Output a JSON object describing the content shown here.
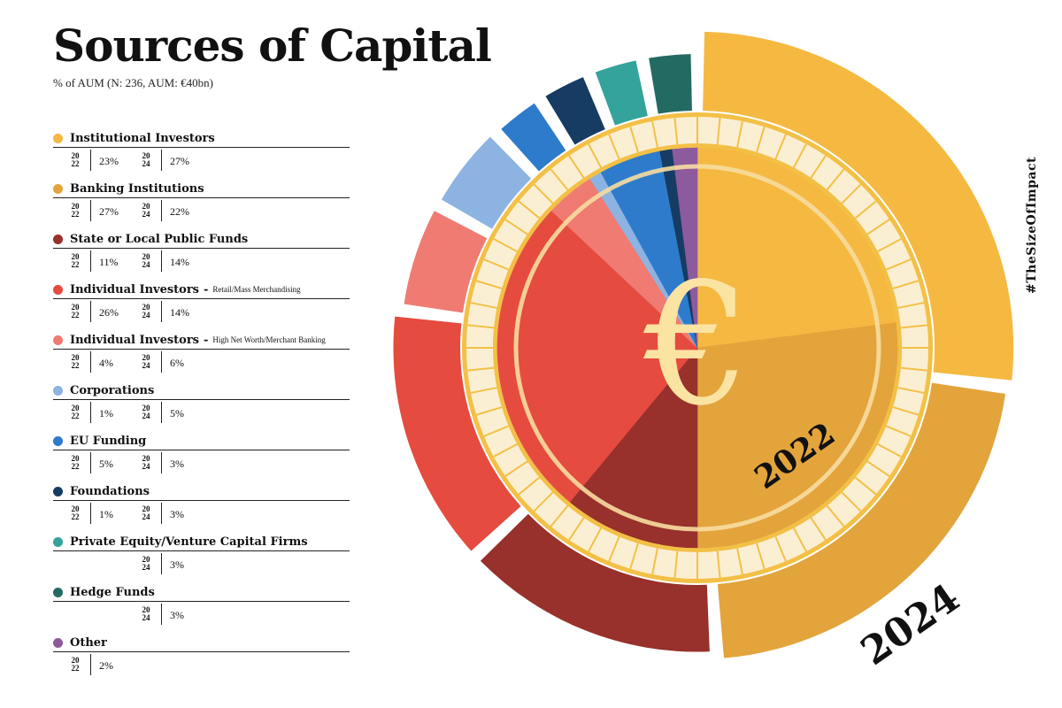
{
  "title": "Sources of Capital",
  "subtitle": "% of AUM (N: 236, AUM: €40bn)",
  "hashtag": "#TheSizeOfImpact",
  "year_labels": {
    "y2022": "2022",
    "y2024": "2024"
  },
  "currency_symbol": "€",
  "legend_year_2022": [
    "20",
    "22"
  ],
  "legend_year_2024": [
    "20",
    "24"
  ],
  "chart_data": {
    "type": "pie",
    "series": [
      {
        "name": "2022",
        "values": [
          23,
          27,
          11,
          26,
          4,
          1,
          5,
          1,
          null,
          null,
          2
        ]
      },
      {
        "name": "2024",
        "values": [
          27,
          22,
          14,
          14,
          6,
          5,
          3,
          3,
          3,
          3,
          null
        ]
      }
    ],
    "categories": [
      {
        "name": "Institutional Investors",
        "sub": "",
        "color": "#F5B942",
        "v2022": "23%",
        "v2024": "27%"
      },
      {
        "name": "Banking Institutions",
        "sub": "",
        "color": "#E3A43C",
        "v2022": "27%",
        "v2024": "22%"
      },
      {
        "name": "State or Local Public Funds",
        "sub": "",
        "color": "#98302B",
        "v2022": "11%",
        "v2024": "14%"
      },
      {
        "name": "Individual Investors",
        "sub": "Retail/Mass Merchandising",
        "color": "#E54B3F",
        "v2022": "26%",
        "v2024": "14%"
      },
      {
        "name": "Individual Investors",
        "sub": "High Net Worth/Merchant Banking",
        "color": "#EF7B72",
        "v2022": "4%",
        "v2024": "6%"
      },
      {
        "name": "Corporations",
        "sub": "",
        "color": "#8DB3E2",
        "v2022": "1%",
        "v2024": "5%"
      },
      {
        "name": "EU Funding",
        "sub": "",
        "color": "#2E7BCB",
        "v2022": "5%",
        "v2024": "3%"
      },
      {
        "name": "Foundations",
        "sub": "",
        "color": "#163C63",
        "v2022": "1%",
        "v2024": "3%"
      },
      {
        "name": "Private Equity/Venture Capital Firms",
        "sub": "",
        "color": "#34A39B",
        "v2022": "",
        "v2024": "3%"
      },
      {
        "name": "Hedge Funds",
        "sub": "",
        "color": "#236A63",
        "v2022": "",
        "v2024": "3%"
      },
      {
        "name": "Other",
        "sub": "",
        "color": "#8D5A9E",
        "v2022": "2%",
        "v2024": ""
      }
    ]
  }
}
